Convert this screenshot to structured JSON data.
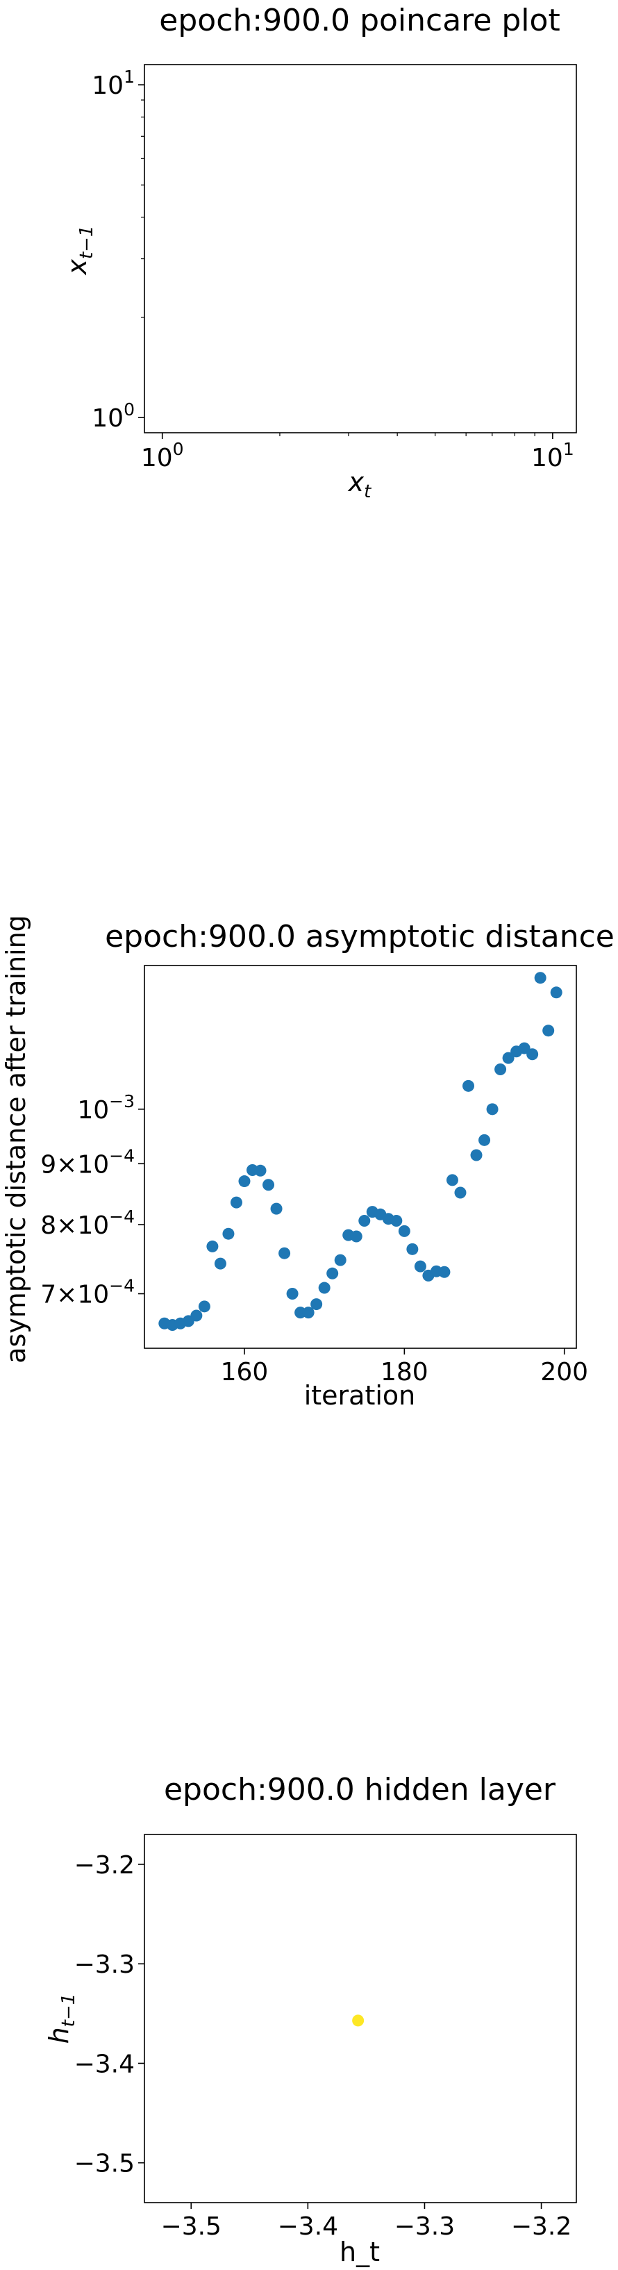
{
  "charts": [
    {
      "id": "poincare",
      "type": "scatter",
      "title": "epoch:900.0 poincare plot",
      "xlabel": "x_t",
      "ylabel": "x_{t−1}",
      "xscale": "log",
      "yscale": "log",
      "xlim": [
        0.9,
        11.5
      ],
      "ylim": [
        0.9,
        11.5
      ],
      "xticks": [
        {
          "value": 1,
          "base": "10",
          "exp": "0"
        },
        {
          "value": 10,
          "base": "10",
          "exp": "1"
        }
      ],
      "yticks": [
        {
          "value": 1,
          "base": "10",
          "exp": "0"
        },
        {
          "value": 10,
          "base": "10",
          "exp": "1"
        }
      ],
      "points": []
    },
    {
      "id": "distance",
      "type": "scatter",
      "title": "epoch:900.0 asymptotic distance",
      "xlabel": "iteration",
      "ylabel": "asymptotic distance after training",
      "xscale": "linear",
      "yscale": "log",
      "xlim": [
        147.5,
        201.5
      ],
      "ylim": [
        0.00063,
        0.00132
      ],
      "marker_color": "#1f77b4",
      "xticks": [
        {
          "value": 160,
          "label": "160"
        },
        {
          "value": 180,
          "label": "180"
        },
        {
          "value": 200,
          "label": "200"
        }
      ],
      "yticks": [
        {
          "value": 0.0007,
          "mant": "7",
          "base": "10",
          "exp": "−4"
        },
        {
          "value": 0.0008,
          "mant": "8",
          "base": "10",
          "exp": "−4"
        },
        {
          "value": 0.0009,
          "mant": "9",
          "base": "10",
          "exp": "−4"
        },
        {
          "value": 0.001,
          "mant": "",
          "base": "10",
          "exp": "−3"
        }
      ],
      "x": [
        150,
        151,
        152,
        153,
        154,
        155,
        156,
        157,
        158,
        159,
        160,
        161,
        162,
        163,
        164,
        165,
        166,
        167,
        168,
        169,
        170,
        171,
        172,
        173,
        174,
        175,
        176,
        177,
        178,
        179,
        180,
        181,
        182,
        183,
        184,
        185,
        186,
        187,
        188,
        189,
        190,
        191,
        192,
        193,
        194,
        195,
        196,
        197,
        198,
        199
      ],
      "y": [
        0.000661,
        0.000659,
        0.000661,
        0.000664,
        0.000671,
        0.000683,
        0.000767,
        0.000742,
        0.000786,
        0.000835,
        0.00087,
        0.000889,
        0.000888,
        0.000864,
        0.000825,
        0.000757,
        0.0007,
        0.000675,
        0.000675,
        0.000686,
        0.000708,
        0.000728,
        0.000747,
        0.000784,
        0.000782,
        0.000806,
        0.00082,
        0.000816,
        0.000809,
        0.000806,
        0.00079,
        0.000763,
        0.000738,
        0.000725,
        0.000731,
        0.00073,
        0.000872,
        0.000851,
        0.001046,
        0.000915,
        0.000942,
        0.001,
        0.00108,
        0.001104,
        0.001118,
        0.001125,
        0.001112,
        0.001289,
        0.001164,
        0.001253
      ]
    },
    {
      "id": "hidden",
      "type": "scatter",
      "title": "epoch:900.0 hidden layer",
      "xlabel": "h_t",
      "ylabel": "h_{t−1}",
      "xscale": "linear",
      "yscale": "linear",
      "xlim": [
        -3.54,
        -3.17
      ],
      "ylim": [
        -3.54,
        -3.17
      ],
      "marker_color": "#fde725",
      "xticks": [
        {
          "value": -3.5,
          "label": "−3.5"
        },
        {
          "value": -3.4,
          "label": "−3.4"
        },
        {
          "value": -3.3,
          "label": "−3.3"
        },
        {
          "value": -3.2,
          "label": "−3.2"
        }
      ],
      "yticks": [
        {
          "value": -3.5,
          "label": "−3.5"
        },
        {
          "value": -3.4,
          "label": "−3.4"
        },
        {
          "value": -3.3,
          "label": "−3.3"
        },
        {
          "value": -3.2,
          "label": "−3.2"
        }
      ],
      "x": [
        -3.357
      ],
      "y": [
        -3.357
      ]
    }
  ]
}
